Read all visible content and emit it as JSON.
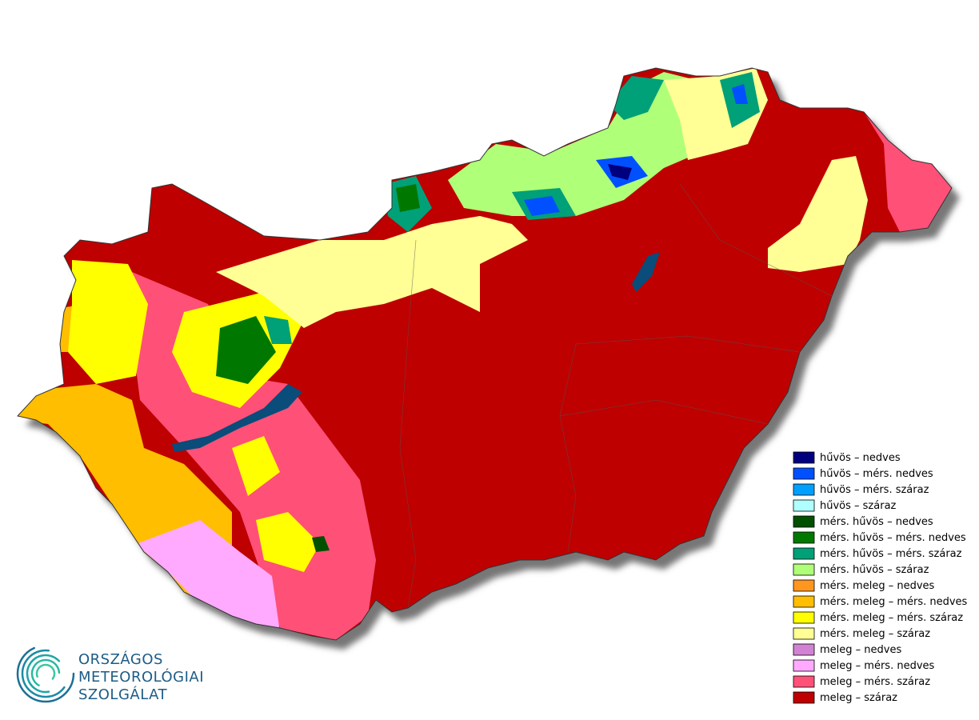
{
  "legend": {
    "items": [
      {
        "label": "hűvös – nedves",
        "color": "#00007f"
      },
      {
        "label": "hűvös – mérs. nedves",
        "color": "#0050ff"
      },
      {
        "label": "hűvös – mérs. száraz",
        "color": "#00a0ff"
      },
      {
        "label": "hűvös – száraz",
        "color": "#b0ffff"
      },
      {
        "label": "mérs. hűvös – nedves",
        "color": "#005000"
      },
      {
        "label": "mérs. hűvös – mérs. nedves",
        "color": "#007800"
      },
      {
        "label": "mérs. hűvös – mérs. száraz",
        "color": "#00a078"
      },
      {
        "label": "mérs. hűvös – száraz",
        "color": "#b0ff78"
      },
      {
        "label": "mérs. meleg – nedves",
        "color": "#ff9620"
      },
      {
        "label": "mérs. meleg – mérs. nedves",
        "color": "#ffbe00"
      },
      {
        "label": "mérs. meleg – mérs. száraz",
        "color": "#ffff00"
      },
      {
        "label": "mérs. meleg – száraz",
        "color": "#ffff96"
      },
      {
        "label": "meleg – nedves",
        "color": "#d282d2"
      },
      {
        "label": "meleg – mérs. nedves",
        "color": "#ffaaff"
      },
      {
        "label": "meleg – mérs. száraz",
        "color": "#ff5078"
      },
      {
        "label": "meleg – száraz",
        "color": "#be0000"
      }
    ]
  },
  "logo": {
    "lines": [
      "ORSZÁGOS",
      "METEOROLÓGIAI",
      "SZOLGÁLAT"
    ]
  }
}
